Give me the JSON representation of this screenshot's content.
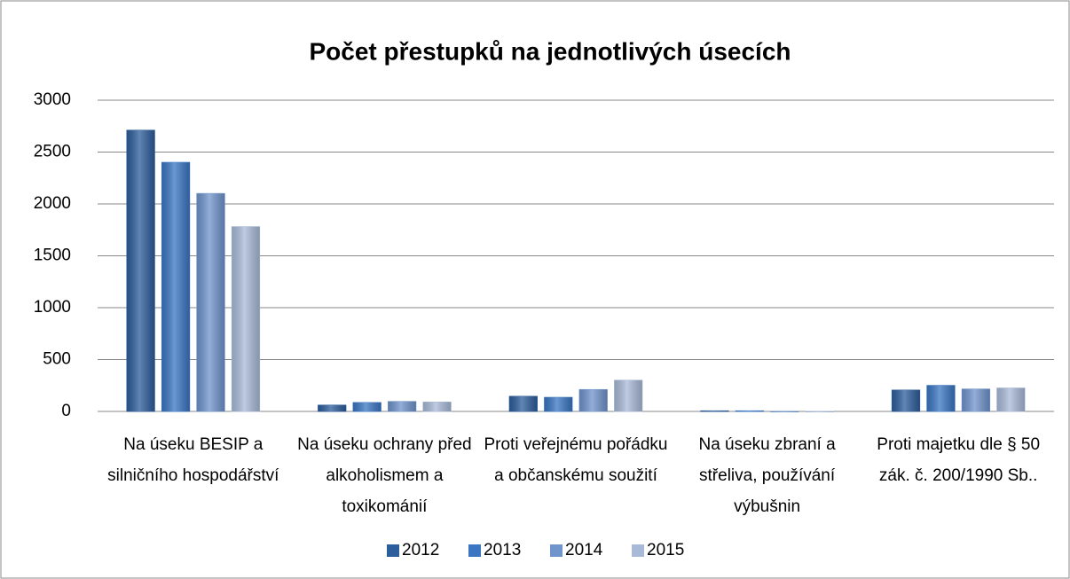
{
  "chart_data": {
    "type": "bar",
    "title": "Počet přestupků na jednotlivých úsecích",
    "categories": [
      "Na úseku BESIP a silničního hospodářství",
      "Na úseku ochrany před alkoholismem a toxikománií",
      "Proti veřejnému pořádku a občanskému soužití",
      "Na úseku zbraní a střeliva, používání výbušnin",
      "Proti majetku dle § 50 zák. č. 200/1990 Sb.."
    ],
    "series": [
      {
        "name": "2012",
        "color": "#2d5e9c",
        "values": [
          2710,
          60,
          145,
          5,
          205
        ]
      },
      {
        "name": "2013",
        "color": "#3b76c2",
        "values": [
          2400,
          85,
          135,
          5,
          250
        ]
      },
      {
        "name": "2014",
        "color": "#7094cc",
        "values": [
          2100,
          95,
          210,
          0,
          215
        ]
      },
      {
        "name": "2015",
        "color": "#a9bad8",
        "values": [
          1780,
          90,
          300,
          0,
          225
        ]
      }
    ],
    "ylim": [
      0,
      3000
    ],
    "yticks": [
      0,
      500,
      1000,
      1500,
      2000,
      2500,
      3000
    ],
    "grid": true,
    "legend": "bottom"
  }
}
